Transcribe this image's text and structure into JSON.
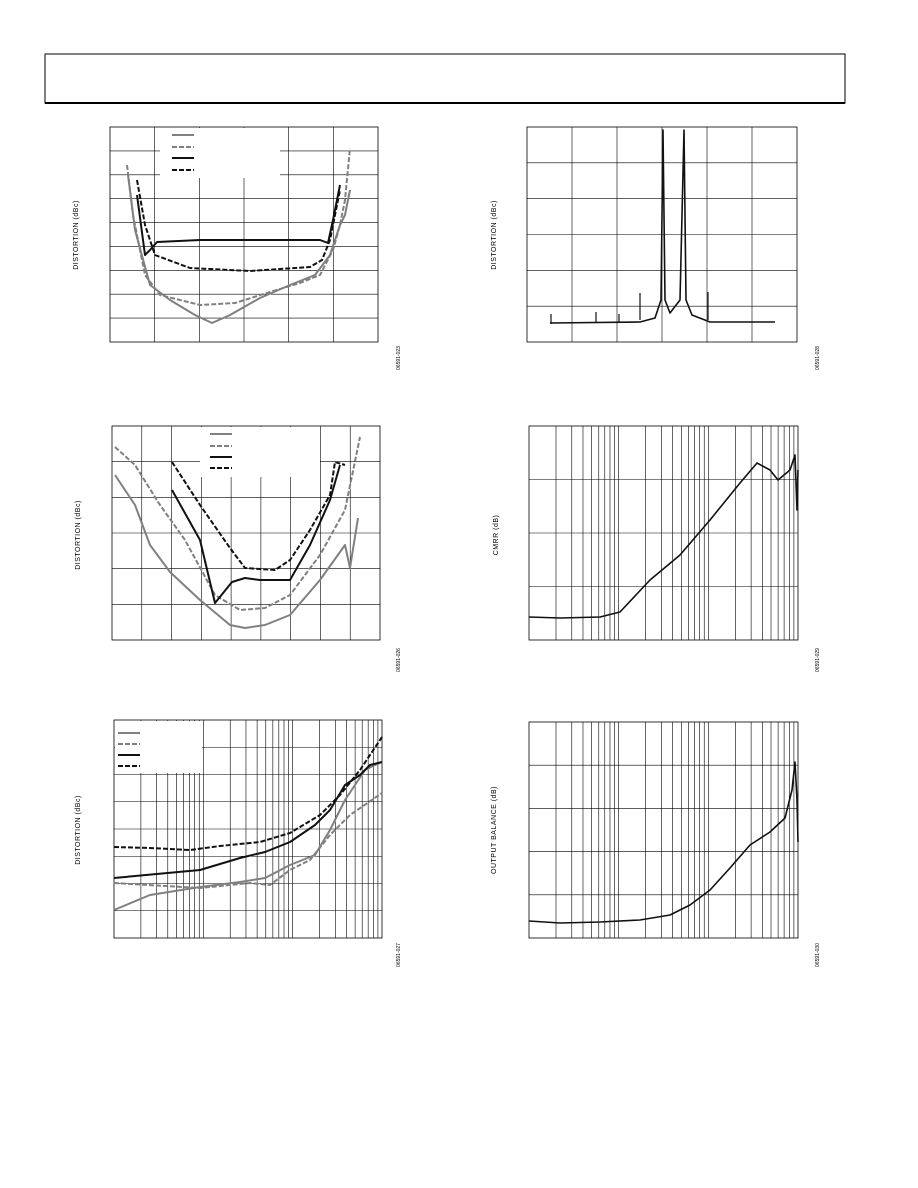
{
  "figures": [
    {
      "y_label": "DISTORTION (dBc)",
      "code": "06591-023"
    },
    {
      "y_label": "DISTORTION (dBc)",
      "code": "06591-028"
    },
    {
      "y_label": "DISTORTION (dBc)",
      "code": "06591-026"
    },
    {
      "y_label": "CMRR (dB)",
      "code": "06591-029"
    },
    {
      "y_label": "DISTORTION (dBc)",
      "code": "06591-027"
    },
    {
      "y_label": "OUTPUT BALANCE (dB)",
      "code": "06591-030"
    }
  ]
}
